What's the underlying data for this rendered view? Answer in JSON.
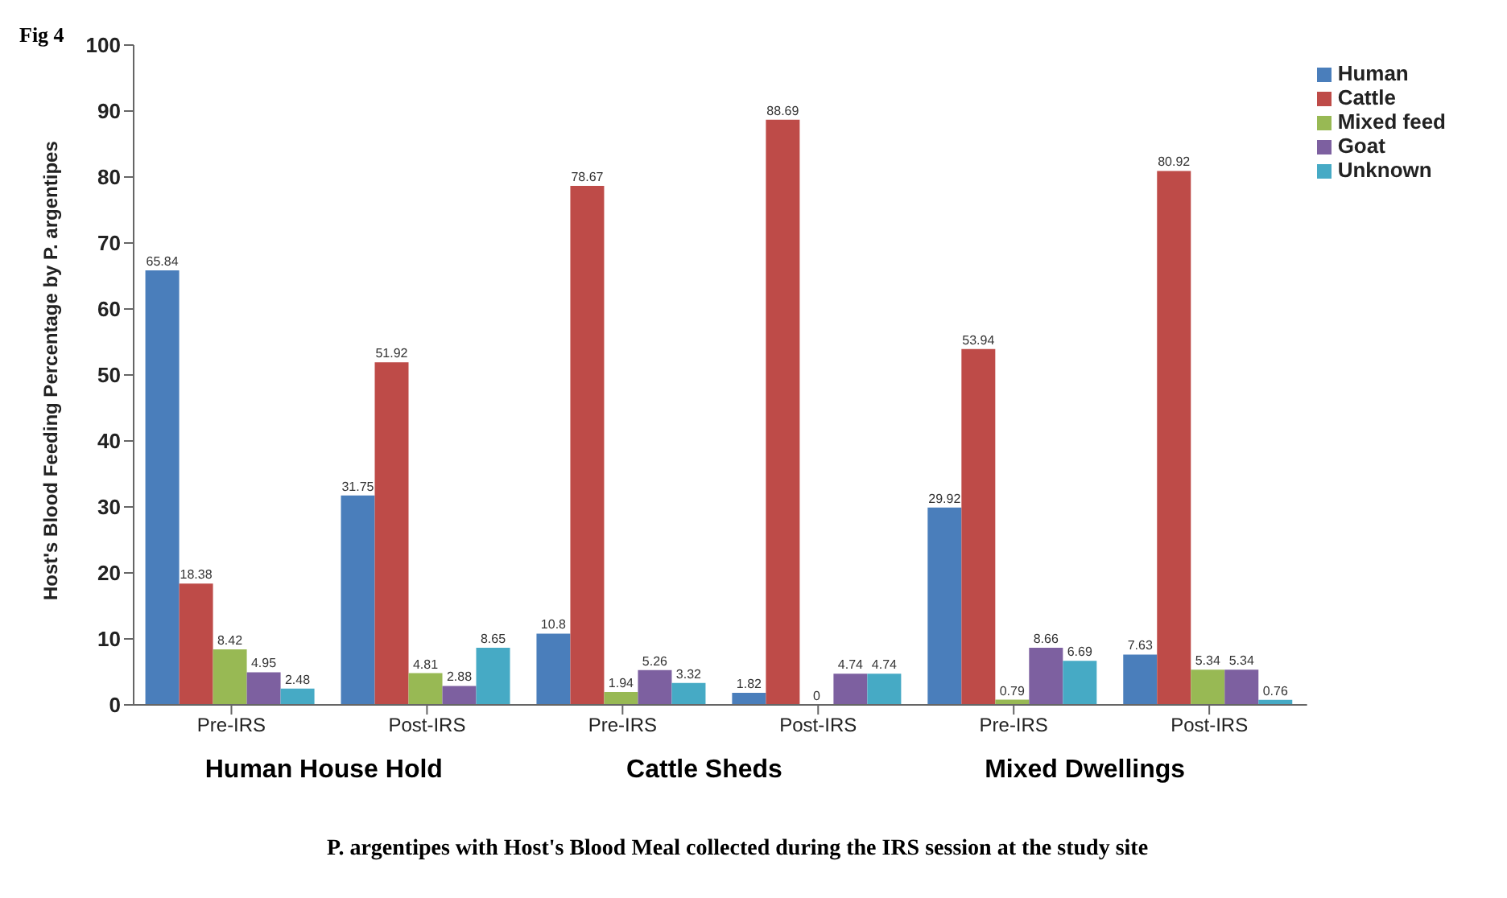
{
  "chart_data": {
    "type": "bar",
    "title": "Fig 4",
    "xlabel": "P. argentipes with Host's Blood Meal collected during the IRS session at the study site",
    "ylabel": "Host's Blood Feeding Percentage by P. argentipes",
    "categories": [
      "Pre-IRS",
      "Post-IRS",
      "Pre-IRS",
      "Post-IRS",
      "Pre-IRS",
      "Post-IRS"
    ],
    "series": [
      {
        "name": "Human",
        "color": "#4a7ebb",
        "values": [
          65.84,
          31.75,
          10.8,
          1.82,
          29.92,
          7.63
        ]
      },
      {
        "name": "Cattle",
        "color": "#be4b48",
        "values": [
          18.38,
          51.92,
          78.67,
          88.69,
          53.94,
          80.92
        ]
      },
      {
        "name": "Mixed feed",
        "color": "#98b954",
        "values": [
          8.42,
          4.81,
          1.94,
          0,
          0.79,
          5.34
        ]
      },
      {
        "name": "Goat",
        "color": "#7d60a0",
        "values": [
          4.95,
          2.88,
          5.26,
          4.74,
          8.66,
          5.34
        ]
      },
      {
        "name": "Unknown",
        "color": "#46aac5",
        "values": [
          2.48,
          8.65,
          3.32,
          4.74,
          6.69,
          0.76
        ]
      }
    ],
    "annotations": [
      "Human House Hold",
      "Cattle Sheds",
      "Mixed Dwellings"
    ],
    "ylim": [
      0,
      100
    ],
    "yticks": [
      0,
      10,
      20,
      30,
      40,
      50,
      60,
      70,
      80,
      90,
      100
    ],
    "grid": false,
    "legend": "top right",
    "data_labels": true
  }
}
